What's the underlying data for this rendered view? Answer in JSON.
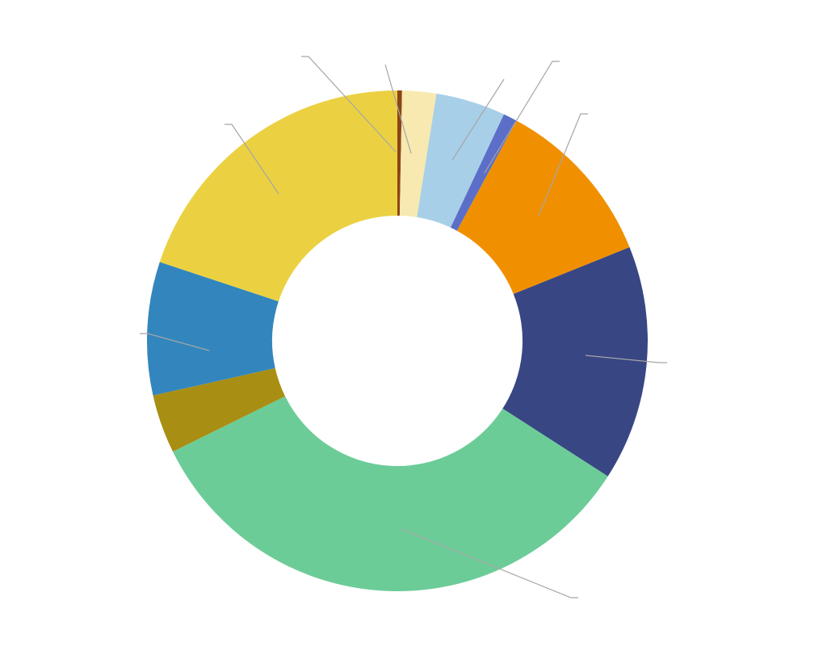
{
  "chart_data": {
    "type": "pie",
    "variant": "donut",
    "title": "",
    "legend": "none",
    "slices": [
      {
        "value": 0.3,
        "color": "#8B4513"
      },
      {
        "value": 2.2,
        "color": "#F7E9B0"
      },
      {
        "value": 4.5,
        "color": "#A8CFE8"
      },
      {
        "value": 0.9,
        "color": "#5B6FC9"
      },
      {
        "value": 11.0,
        "color": "#F09000"
      },
      {
        "value": 15.2,
        "color": "#384683"
      },
      {
        "value": 33.6,
        "color": "#6CCC98"
      },
      {
        "value": 3.8,
        "color": "#A88F14"
      },
      {
        "value": 8.6,
        "color": "#3286BD"
      },
      {
        "value": 19.9,
        "color": "#EBD142"
      }
    ],
    "leader_line_color": "#A6A6A6"
  }
}
